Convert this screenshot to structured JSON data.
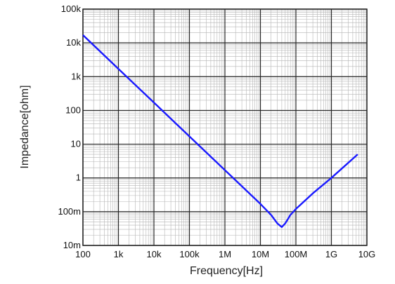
{
  "chart_data": {
    "type": "line",
    "title": "",
    "xlabel": "Frequency[Hz]",
    "ylabel": "Impedance[ohm]",
    "x_scale": "log",
    "y_scale": "log",
    "xlim": [
      100,
      10000000000
    ],
    "ylim": [
      0.01,
      100000
    ],
    "grid": true,
    "x_ticks": [
      {
        "value": 100,
        "label": "100"
      },
      {
        "value": 1000,
        "label": "1k"
      },
      {
        "value": 10000,
        "label": "10k"
      },
      {
        "value": 100000,
        "label": "100k"
      },
      {
        "value": 1000000,
        "label": "1M"
      },
      {
        "value": 10000000,
        "label": "10M"
      },
      {
        "value": 100000000,
        "label": "100M"
      },
      {
        "value": 1000000000,
        "label": "1G"
      },
      {
        "value": 10000000000,
        "label": "10G"
      }
    ],
    "y_ticks": [
      {
        "value": 0.01,
        "label": "10m"
      },
      {
        "value": 0.1,
        "label": "100m"
      },
      {
        "value": 1,
        "label": "1"
      },
      {
        "value": 10,
        "label": "10"
      },
      {
        "value": 100,
        "label": "100"
      },
      {
        "value": 1000,
        "label": "1k"
      },
      {
        "value": 10000,
        "label": "10k"
      },
      {
        "value": 100000,
        "label": "100k"
      }
    ],
    "series": [
      {
        "color": "#1a1aff",
        "x": [
          100,
          1000,
          10000,
          100000,
          1000000,
          10000000,
          20000000,
          30000000,
          40000000,
          50000000,
          70000000,
          100000000,
          300000000,
          1000000000,
          5500000000
        ],
        "y": [
          17000,
          1700,
          170,
          17,
          1.7,
          0.17,
          0.08,
          0.045,
          0.035,
          0.045,
          0.08,
          0.12,
          0.35,
          1.0,
          5.0
        ]
      }
    ]
  }
}
